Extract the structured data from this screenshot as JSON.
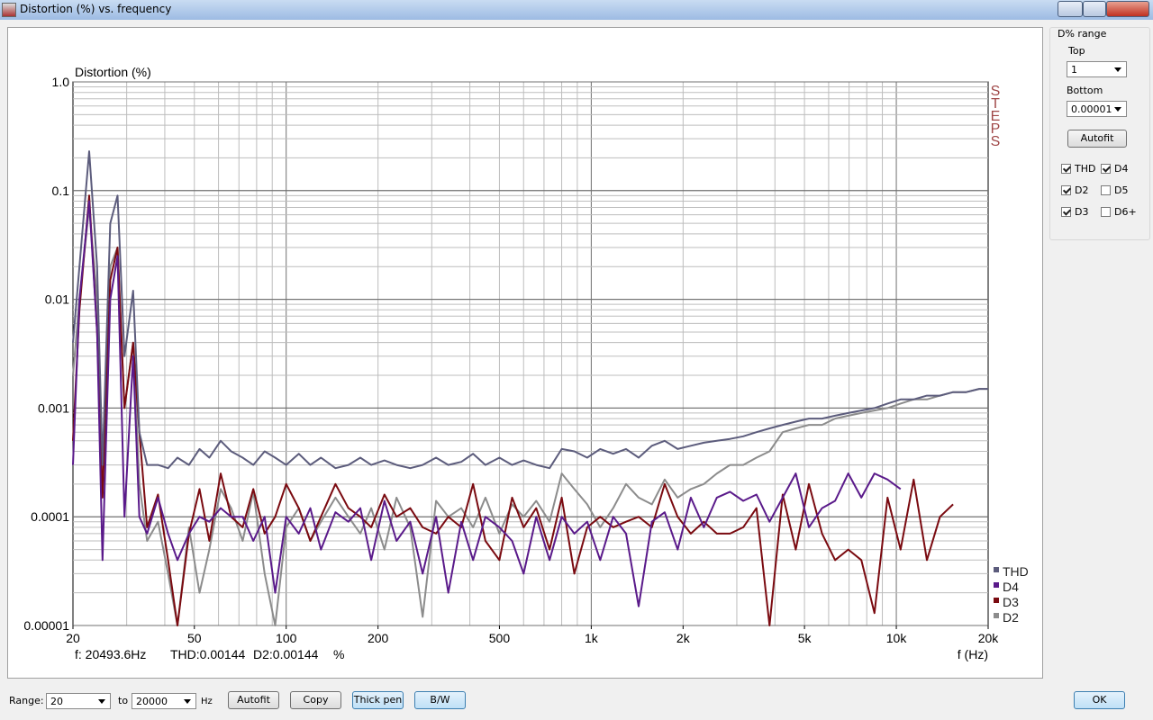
{
  "window": {
    "title": "Distortion (%) vs. frequency"
  },
  "status": [
    "f: 20493.6Hz",
    "THD:0.00144",
    "D2:0.00144",
    "%"
  ],
  "watermark": "STEPS",
  "sidebar": {
    "group": "D% range",
    "top_label": "Top",
    "top_value": "1",
    "bottom_label": "Bottom",
    "bottom_value": "0.00001",
    "autofit": "Autofit",
    "checkboxes": [
      {
        "label": "THD",
        "checked": true
      },
      {
        "label": "D4",
        "checked": true
      },
      {
        "label": "D2",
        "checked": true
      },
      {
        "label": "D5",
        "checked": false
      },
      {
        "label": "D3",
        "checked": true
      },
      {
        "label": "D6+",
        "checked": false
      }
    ]
  },
  "bottom_bar": {
    "range_label": "Range:",
    "from": "20",
    "to_label": "to",
    "to": "20000",
    "unit": "Hz",
    "buttons": [
      "Autofit",
      "Copy",
      "Thick pen",
      "B/W"
    ],
    "ok": "OK"
  },
  "chart_data": {
    "type": "line",
    "ylabel": "Distortion (%)",
    "xlabel": "f (Hz)",
    "xscale": "log",
    "yscale": "log",
    "grid": true,
    "legend": "lower right",
    "xlim": [
      20,
      20000
    ],
    "xticks": [
      20,
      50,
      100,
      200,
      500,
      {
        "value": 1000,
        "label": "1k"
      },
      {
        "value": 2000,
        "label": "2k"
      },
      {
        "value": 5000,
        "label": "5k"
      },
      {
        "value": 10000,
        "label": "10k"
      },
      {
        "value": 20000,
        "label": "20k"
      }
    ],
    "ylim": [
      1e-05,
      1
    ],
    "yticks": [
      1e-05,
      0.0001,
      0.001,
      0.01,
      0.1,
      {
        "value": 1,
        "label": "1.0"
      }
    ],
    "x": [
      20,
      21,
      22.6,
      24,
      25,
      26.5,
      28,
      29.5,
      31.5,
      33,
      35,
      38,
      41,
      44,
      48,
      52,
      56,
      61,
      66,
      72,
      78,
      85,
      92,
      100,
      110,
      120,
      130,
      145,
      160,
      175,
      190,
      210,
      230,
      255,
      280,
      310,
      340,
      375,
      410,
      450,
      500,
      550,
      600,
      660,
      730,
      800,
      880,
      970,
      1070,
      1180,
      1300,
      1430,
      1580,
      1740,
      1920,
      2120,
      2340,
      2580,
      2850,
      3150,
      3480,
      3840,
      4240,
      4680,
      5170,
      5710,
      6300,
      6960,
      7680,
      8480,
      9360,
      10330,
      11400,
      12600,
      13900,
      15350,
      16950,
      18700,
      20000
    ],
    "series": [
      {
        "name": "THD",
        "color": "#5c5c7c",
        "values": [
          0.004,
          0.02,
          0.23,
          0.02,
          0.0003,
          0.05,
          0.09,
          0.003,
          0.012,
          0.0006,
          0.0003,
          0.0003,
          0.00028,
          0.00035,
          0.0003,
          0.00042,
          0.00035,
          0.0005,
          0.0004,
          0.00035,
          0.0003,
          0.0004,
          0.00035,
          0.0003,
          0.00038,
          0.0003,
          0.00035,
          0.00028,
          0.0003,
          0.00035,
          0.0003,
          0.00033,
          0.0003,
          0.00028,
          0.0003,
          0.00035,
          0.0003,
          0.00032,
          0.00038,
          0.0003,
          0.00035,
          0.0003,
          0.00033,
          0.0003,
          0.00028,
          0.00042,
          0.0004,
          0.00035,
          0.00042,
          0.00038,
          0.00042,
          0.00035,
          0.00045,
          0.0005,
          0.00042,
          0.00045,
          0.00048,
          0.0005,
          0.00052,
          0.00055,
          0.0006,
          0.00065,
          0.0007,
          0.00075,
          0.0008,
          0.0008,
          0.00085,
          0.0009,
          0.00095,
          0.001,
          0.0011,
          0.0012,
          0.0012,
          0.0013,
          0.0013,
          0.0014,
          0.0014,
          0.0015,
          0.0015
        ]
      },
      {
        "name": "D4",
        "color": "#5a1a8a",
        "values": [
          0.0003,
          0.01,
          0.08,
          0.005,
          4e-05,
          0.01,
          0.025,
          0.0001,
          0.003,
          0.0001,
          7e-05,
          0.00015,
          7e-05,
          4e-05,
          7e-05,
          0.0001,
          9e-05,
          0.00012,
          0.0001,
          0.0001,
          6e-05,
          0.0001,
          2e-05,
          0.0001,
          7e-05,
          0.00012,
          5e-05,
          0.00011,
          9e-05,
          0.00012,
          4e-05,
          0.00014,
          6e-05,
          9e-05,
          3e-05,
          0.0001,
          2e-05,
          9e-05,
          4e-05,
          0.0001,
          8e-05,
          6e-05,
          3e-05,
          0.0001,
          4e-05,
          0.0001,
          7e-05,
          9e-05,
          4e-05,
          0.0001,
          7e-05,
          1.5e-05,
          9e-05,
          0.00011,
          5e-05,
          0.00015,
          8e-05,
          0.00015,
          0.00017,
          0.00014,
          0.00016,
          9e-05,
          0.00015,
          0.00025,
          8e-05,
          0.00012,
          0.00014,
          0.00025,
          0.00015,
          0.00025,
          0.00022,
          0.00018,
          null,
          null,
          null,
          null,
          null,
          null,
          null
        ]
      },
      {
        "name": "D3",
        "color": "#7a0a10",
        "values": [
          0.0005,
          0.008,
          0.09,
          0.005,
          0.00015,
          0.015,
          0.03,
          0.001,
          0.004,
          0.0006,
          8e-05,
          0.00016,
          4e-05,
          1e-05,
          7e-05,
          0.00018,
          6e-05,
          0.00025,
          0.0001,
          8e-05,
          0.00018,
          7e-05,
          0.0001,
          0.0002,
          0.00012,
          6e-05,
          0.0001,
          0.0002,
          0.00012,
          0.0001,
          8e-05,
          0.00016,
          0.0001,
          0.00012,
          8e-05,
          7e-05,
          0.0001,
          8e-05,
          0.0002,
          6e-05,
          4e-05,
          0.00015,
          8e-05,
          0.00012,
          5e-05,
          0.00015,
          3e-05,
          8e-05,
          0.0001,
          8e-05,
          9e-05,
          0.0001,
          8e-05,
          0.0002,
          0.0001,
          7e-05,
          9e-05,
          7e-05,
          7e-05,
          8e-05,
          0.00012,
          1e-05,
          0.00016,
          5e-05,
          0.0002,
          7e-05,
          4e-05,
          5e-05,
          4e-05,
          1.3e-05,
          0.00015,
          5e-05,
          0.00022,
          4e-05,
          0.0001,
          0.00013,
          null,
          null,
          null
        ]
      },
      {
        "name": "D2",
        "color": "#8c8c8c",
        "values": [
          0.002,
          0.01,
          0.07,
          0.01,
          0.0002,
          0.02,
          0.03,
          0.001,
          0.004,
          0.0002,
          6e-05,
          9e-05,
          3e-05,
          1e-05,
          8e-05,
          2e-05,
          5e-05,
          0.00018,
          0.00012,
          6e-05,
          0.00017,
          3e-05,
          1e-05,
          8e-05,
          0.00012,
          6e-05,
          9e-05,
          0.00015,
          0.0001,
          7e-05,
          0.00012,
          5e-05,
          0.00015,
          8e-05,
          1.2e-05,
          0.00014,
          0.0001,
          0.00012,
          8e-05,
          0.00015,
          7e-05,
          0.00013,
          0.0001,
          0.00014,
          9e-05,
          0.00025,
          0.00018,
          0.00013,
          8e-05,
          0.00012,
          0.0002,
          0.00015,
          0.00013,
          0.00022,
          0.00015,
          0.00018,
          0.0002,
          0.00025,
          0.0003,
          0.0003,
          0.00035,
          0.0004,
          0.0006,
          0.00065,
          0.0007,
          0.0007,
          0.0008,
          0.00085,
          0.0009,
          0.00095,
          0.001,
          0.0011,
          0.0012,
          0.0012,
          0.0013,
          0.0014,
          0.0014,
          0.0015,
          0.0015
        ]
      }
    ]
  }
}
